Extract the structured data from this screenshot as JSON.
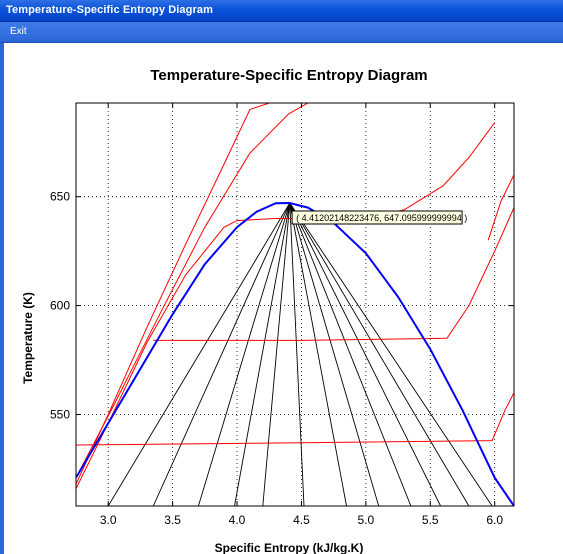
{
  "window": {
    "title": "Temperature-Specific Entropy Diagram"
  },
  "menu": {
    "items": [
      {
        "label": "Exit"
      }
    ]
  },
  "colors": {
    "titlebar": "#0a54d9",
    "isobar": "#ff0000",
    "saturation_dome": "#0000ff",
    "quality_line": "#000000",
    "tooltip_bg": "#ffffe1"
  },
  "chart_data": {
    "type": "line",
    "title": "Temperature-Specific Entropy Diagram",
    "xlabel": "Specific Entropy (kJ/kg.K)",
    "ylabel": "Temperature (K)",
    "xlim": [
      2.75,
      6.15
    ],
    "ylim": [
      508,
      693
    ],
    "grid": true,
    "x_ticks": [
      "3.0",
      "3.5",
      "4.0",
      "4.5",
      "5.0",
      "5.5",
      "6.0"
    ],
    "y_ticks": [
      "550",
      "600",
      "650"
    ],
    "tooltip": {
      "text": "( 4.41202148223476, 647.095999999994 )",
      "x": 4.41202148223476,
      "y": 647.095999999994
    },
    "saturation_dome": {
      "x": [
        2.75,
        3.0,
        3.25,
        3.5,
        3.75,
        4.0,
        4.15,
        4.3,
        4.41,
        4.55,
        4.75,
        5.0,
        5.25,
        5.5,
        5.75,
        6.0,
        6.15
      ],
      "y": [
        521,
        546,
        571,
        596,
        619,
        636,
        643,
        647,
        647.1,
        645,
        638,
        624,
        604,
        580,
        552,
        521,
        508
      ]
    },
    "quality_lines": [
      {
        "x": [
          4.41,
          3.0
        ],
        "y": [
          647.1,
          508
        ]
      },
      {
        "x": [
          4.41,
          3.35
        ],
        "y": [
          647.1,
          508
        ]
      },
      {
        "x": [
          4.41,
          3.7
        ],
        "y": [
          647.1,
          508
        ]
      },
      {
        "x": [
          4.41,
          3.98
        ],
        "y": [
          647.1,
          508
        ]
      },
      {
        "x": [
          4.41,
          4.2
        ],
        "y": [
          647.1,
          508
        ]
      },
      {
        "x": [
          4.41,
          4.52
        ],
        "y": [
          647.1,
          508
        ]
      },
      {
        "x": [
          4.41,
          4.85
        ],
        "y": [
          647.1,
          508
        ]
      },
      {
        "x": [
          4.41,
          5.1
        ],
        "y": [
          647.1,
          508
        ]
      },
      {
        "x": [
          4.41,
          5.35
        ],
        "y": [
          647.1,
          508
        ]
      },
      {
        "x": [
          4.41,
          5.58
        ],
        "y": [
          647.1,
          508
        ]
      },
      {
        "x": [
          4.41,
          5.8
        ],
        "y": [
          647.1,
          508
        ]
      },
      {
        "x": [
          4.41,
          5.98
        ],
        "y": [
          647.1,
          508
        ]
      }
    ],
    "isobars": [
      {
        "x": [
          2.75,
          3.0,
          3.3,
          3.6,
          3.9,
          4.1,
          4.25
        ],
        "y": [
          518,
          550,
          590,
          628,
          665,
          690,
          693
        ]
      },
      {
        "x": [
          2.75,
          3.05,
          3.4,
          3.75,
          4.1,
          4.4,
          4.55
        ],
        "y": [
          521,
          555,
          596,
          636,
          670,
          688,
          693
        ]
      },
      {
        "x": [
          2.75,
          3.0,
          3.3,
          3.6,
          3.9,
          4.0,
          4.3,
          4.6,
          5.0,
          5.3,
          5.6,
          5.8,
          6.0
        ],
        "y": [
          516,
          546,
          583,
          614,
          636,
          639,
          640,
          640,
          640,
          644,
          655,
          668,
          684
        ]
      },
      {
        "x": [
          3.35,
          4.5,
          5.63,
          5.8,
          6.0,
          6.15
        ],
        "y": [
          584,
          584,
          585,
          600,
          625,
          645
        ]
      },
      {
        "x": [
          2.75,
          4.5,
          5.98,
          6.08,
          6.15
        ],
        "y": [
          536,
          537,
          538,
          552,
          560
        ]
      },
      {
        "x": [
          5.95,
          6.05,
          6.15
        ],
        "y": [
          630,
          648,
          660
        ]
      }
    ]
  }
}
